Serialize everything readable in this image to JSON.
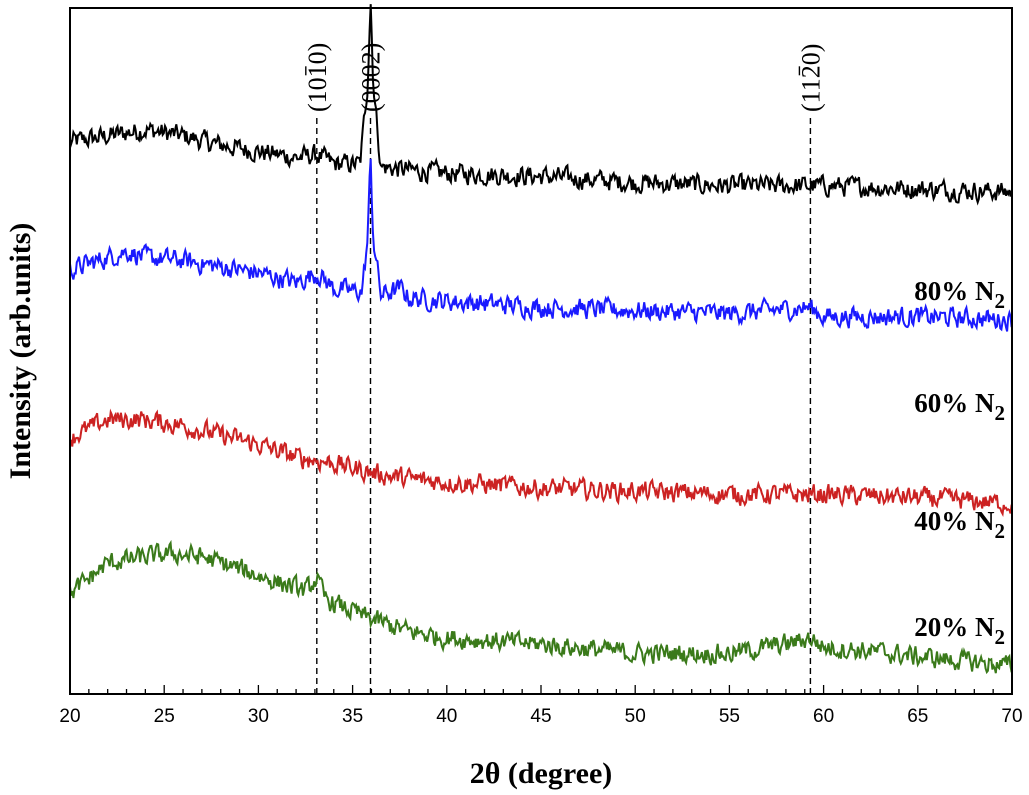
{
  "chart_data": {
    "type": "line",
    "xlabel": "2θ (degree)",
    "ylabel": "Intensity (arb.units)",
    "xlim": [
      20,
      70
    ],
    "ylim": [
      0,
      11
    ],
    "xticks": [
      "20",
      "25",
      "30",
      "35",
      "40",
      "45",
      "50",
      "55",
      "60",
      "65",
      "70"
    ],
    "grid": false,
    "legend": "inline-right",
    "reference_lines": [
      {
        "x": 33.1,
        "label": "(1010)",
        "label_bars": [
          "1"
        ]
      },
      {
        "x": 35.95,
        "label": "(0002)",
        "label_bars": []
      },
      {
        "x": 59.3,
        "label": "(1120)",
        "label_bars": [
          "2"
        ]
      }
    ],
    "series": [
      {
        "name": "80% N2",
        "label_main": "80% N",
        "label_sub": "2",
        "color": "#000000",
        "x": [
          20,
          22,
          24,
          26,
          28,
          30,
          32,
          33.1,
          34,
          35.4,
          35.8,
          35.95,
          36.1,
          36.5,
          38,
          40,
          45,
          50,
          55,
          60,
          65,
          70
        ],
        "values": [
          8.85,
          8.95,
          9.05,
          8.95,
          8.8,
          8.7,
          8.6,
          8.65,
          8.5,
          8.5,
          9.8,
          11.2,
          9.8,
          8.45,
          8.4,
          8.35,
          8.3,
          8.2,
          8.15,
          8.15,
          8.1,
          8.05
        ]
      },
      {
        "name": "60% N2",
        "label_main": "60% N",
        "label_sub": "2",
        "color": "#1a1aff",
        "x": [
          20,
          22,
          23,
          24,
          26,
          28,
          30,
          32,
          33.1,
          34,
          35.5,
          35.8,
          35.95,
          36.1,
          36.5,
          37.6,
          38,
          40,
          45,
          50,
          55,
          59.3,
          60,
          65,
          70
        ],
        "values": [
          6.8,
          7.0,
          7.1,
          7.0,
          6.95,
          6.85,
          6.75,
          6.6,
          6.75,
          6.5,
          6.45,
          7.3,
          8.6,
          7.3,
          6.4,
          6.5,
          6.35,
          6.3,
          6.2,
          6.15,
          6.1,
          6.2,
          6.05,
          6.05,
          6.0
        ]
      },
      {
        "name": "40% N2",
        "label_main": "40% N",
        "label_sub": "2",
        "color": "#cc2222",
        "x": [
          20,
          22,
          24,
          26,
          28,
          30,
          32,
          34,
          36,
          38,
          40,
          45,
          50,
          55,
          60,
          65,
          70
        ],
        "values": [
          4.1,
          4.4,
          4.4,
          4.3,
          4.15,
          4.0,
          3.8,
          3.7,
          3.55,
          3.45,
          3.4,
          3.3,
          3.25,
          3.2,
          3.2,
          3.15,
          3.05
        ]
      },
      {
        "name": "20% N2",
        "label_main": "20% N",
        "label_sub": "2",
        "color": "#3a7a1a",
        "x": [
          20,
          21,
          22,
          24,
          25.5,
          27,
          29,
          31,
          32.5,
          33.1,
          33.5,
          34,
          36,
          38,
          40,
          45,
          50,
          55,
          58,
          59.3,
          60,
          62,
          65,
          70
        ],
        "values": [
          1.6,
          1.85,
          2.1,
          2.2,
          2.25,
          2.2,
          2.0,
          1.8,
          1.65,
          1.85,
          1.55,
          1.45,
          1.2,
          1.0,
          0.9,
          0.8,
          0.65,
          0.65,
          0.8,
          0.9,
          0.75,
          0.7,
          0.6,
          0.45
        ]
      }
    ]
  }
}
